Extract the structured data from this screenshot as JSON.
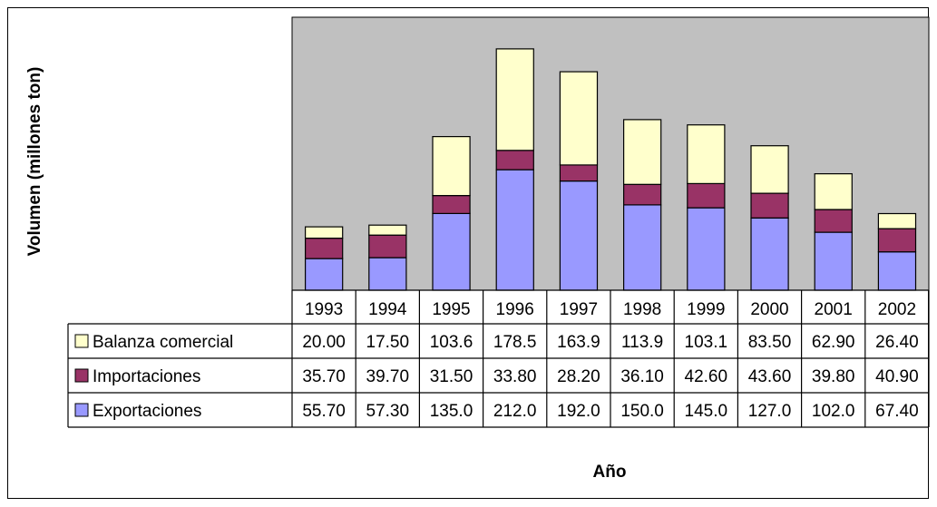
{
  "chart_data": {
    "type": "bar",
    "stacked": true,
    "categories": [
      "1993",
      "1994",
      "1995",
      "1996",
      "1997",
      "1998",
      "1999",
      "2000",
      "2001",
      "2002"
    ],
    "series": [
      {
        "name": "Exportaciones",
        "values": [
          55.7,
          57.3,
          135.0,
          212.0,
          192.0,
          150.0,
          145.0,
          127.0,
          102.0,
          67.4
        ],
        "color": "#9999ff",
        "labels": [
          "55.70",
          "57.30",
          "135.0",
          "212.0",
          "192.0",
          "150.0",
          "145.0",
          "127.0",
          "102.0",
          "67.40"
        ]
      },
      {
        "name": "Importaciones",
        "values": [
          35.7,
          39.7,
          31.5,
          33.8,
          28.2,
          36.1,
          42.6,
          43.6,
          39.8,
          40.9
        ],
        "color": "#993366",
        "labels": [
          "35.70",
          "39.70",
          "31.50",
          "33.80",
          "28.20",
          "36.10",
          "42.60",
          "43.60",
          "39.80",
          "40.90"
        ]
      },
      {
        "name": "Balanza comercial",
        "values": [
          20.0,
          17.5,
          103.6,
          178.5,
          163.9,
          113.9,
          103.1,
          83.5,
          62.9,
          26.4
        ],
        "color": "#ffffcc",
        "labels": [
          "20.00",
          "17.50",
          "103.6",
          "178.5",
          "163.9",
          "113.9",
          "103.1",
          "83.50",
          "62.90",
          "26.40"
        ]
      }
    ],
    "table_order": [
      "Balanza comercial",
      "Importaciones",
      "Exportaciones"
    ],
    "xlabel": "Año",
    "ylabel": "Volumen (millones ton)",
    "ylim": [
      0,
      480
    ],
    "grid": false,
    "plot_background": "#c0c0c0",
    "legend": "data-table"
  }
}
